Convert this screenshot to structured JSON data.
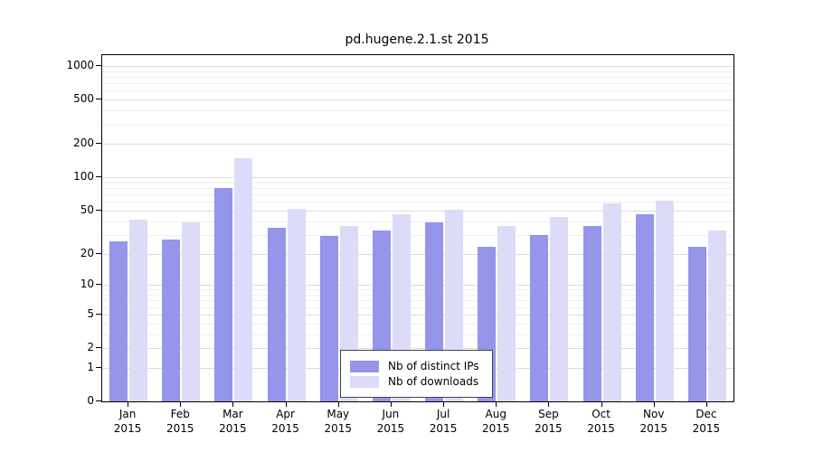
{
  "title": "pd.hugene.2.1.st 2015",
  "colors": {
    "distinct_ips": "#9595ea",
    "downloads": "#dcdcf8",
    "grid_major": "#dcdcdc",
    "grid_minor": "#efefef",
    "axis": "#000000",
    "background": "#ffffff"
  },
  "y_axis": {
    "tick_labels": [
      "1000",
      "500",
      "200",
      "100",
      "50",
      "20",
      "10",
      "5",
      "2",
      "1",
      "0"
    ],
    "tick_values": [
      1000,
      500,
      200,
      100,
      50,
      20,
      10,
      5,
      2,
      1,
      0
    ]
  },
  "x_axis": {
    "months": [
      "Jan",
      "Feb",
      "Mar",
      "Apr",
      "May",
      "Jun",
      "Jul",
      "Aug",
      "Sep",
      "Oct",
      "Nov",
      "Dec"
    ],
    "year": "2015"
  },
  "legend": {
    "items": [
      {
        "label": "Nb of distinct IPs",
        "color_key": "distinct_ips"
      },
      {
        "label": "Nb of downloads",
        "color_key": "downloads"
      }
    ]
  },
  "chart_data": {
    "type": "bar",
    "title": "pd.hugene.2.1.st 2015",
    "categories": [
      "Jan 2015",
      "Feb 2015",
      "Mar 2015",
      "Apr 2015",
      "May 2015",
      "Jun 2015",
      "Jul 2015",
      "Aug 2015",
      "Sep 2015",
      "Oct 2015",
      "Nov 2015",
      "Dec 2015"
    ],
    "series": [
      {
        "name": "Nb of distinct IPs",
        "values": [
          26,
          27,
          80,
          35,
          29,
          33,
          39,
          23,
          30,
          36,
          46,
          23
        ]
      },
      {
        "name": "Nb of downloads",
        "values": [
          41,
          39,
          150,
          52,
          36,
          46,
          51,
          36,
          44,
          58,
          61,
          33
        ]
      }
    ],
    "ylabel": "",
    "xlabel": "",
    "ylim": [
      0,
      1000
    ],
    "yscale": "log10(1+x)",
    "grid": "on",
    "legend_position": "bottom-center"
  }
}
